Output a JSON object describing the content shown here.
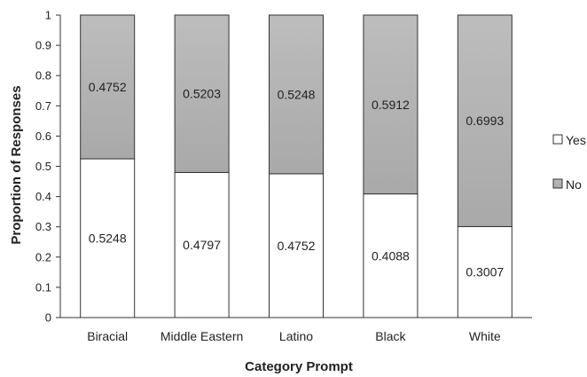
{
  "chart_data": {
    "type": "bar",
    "stacked": true,
    "title": "",
    "xlabel": "Category Prompt",
    "ylabel": "Proportion of Responses",
    "ylim": [
      0,
      1
    ],
    "yticks": [
      "0",
      "0.1",
      "0.2",
      "0.3",
      "0.4",
      "0.5",
      "0.6",
      "0.7",
      "0.8",
      "0.9",
      "1"
    ],
    "categories": [
      "Biracial",
      "Middle Eastern",
      "Latino",
      "Black",
      "White"
    ],
    "series": [
      {
        "name": "Yes",
        "color": "#ffffff",
        "values": [
          0.5248,
          0.4797,
          0.4752,
          0.4088,
          0.3007
        ],
        "labels": [
          "0.5248",
          "0.4797",
          "0.4752",
          "0.4088",
          "0.3007"
        ]
      },
      {
        "name": "No",
        "color": "#b3b3b3",
        "values": [
          0.4752,
          0.5203,
          0.5248,
          0.5912,
          0.6993
        ],
        "labels": [
          "0.4752",
          "0.5203",
          "0.5248",
          "0.5912",
          "0.6993"
        ]
      }
    ],
    "legend_position": "right",
    "grid": false
  }
}
